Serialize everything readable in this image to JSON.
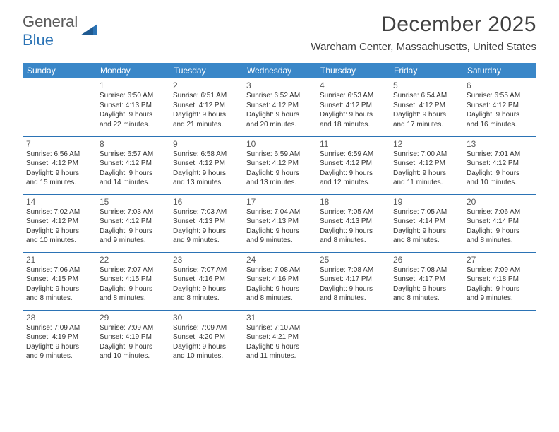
{
  "brand": {
    "text1": "General",
    "text2": "Blue"
  },
  "title": "December 2025",
  "location": "Wareham Center, Massachusetts, United States",
  "colors": {
    "header_bg": "#3a87c8",
    "header_text": "#ffffff",
    "border": "#2b73b5",
    "brand_gray": "#5a5a5a",
    "brand_blue": "#2b73b5",
    "title_color": "#404040",
    "body_text": "#333333",
    "background": "#ffffff"
  },
  "typography": {
    "month_title_fontsize": 30,
    "location_fontsize": 15,
    "dayhead_fontsize": 12,
    "daynum_fontsize": 12,
    "info_fontsize": 10
  },
  "dayHeaders": [
    "Sunday",
    "Monday",
    "Tuesday",
    "Wednesday",
    "Thursday",
    "Friday",
    "Saturday"
  ],
  "weeks": [
    [
      null,
      {
        "n": "1",
        "sr": "6:50 AM",
        "ss": "4:13 PM",
        "dl": "9 hours and 22 minutes."
      },
      {
        "n": "2",
        "sr": "6:51 AM",
        "ss": "4:12 PM",
        "dl": "9 hours and 21 minutes."
      },
      {
        "n": "3",
        "sr": "6:52 AM",
        "ss": "4:12 PM",
        "dl": "9 hours and 20 minutes."
      },
      {
        "n": "4",
        "sr": "6:53 AM",
        "ss": "4:12 PM",
        "dl": "9 hours and 18 minutes."
      },
      {
        "n": "5",
        "sr": "6:54 AM",
        "ss": "4:12 PM",
        "dl": "9 hours and 17 minutes."
      },
      {
        "n": "6",
        "sr": "6:55 AM",
        "ss": "4:12 PM",
        "dl": "9 hours and 16 minutes."
      }
    ],
    [
      {
        "n": "7",
        "sr": "6:56 AM",
        "ss": "4:12 PM",
        "dl": "9 hours and 15 minutes."
      },
      {
        "n": "8",
        "sr": "6:57 AM",
        "ss": "4:12 PM",
        "dl": "9 hours and 14 minutes."
      },
      {
        "n": "9",
        "sr": "6:58 AM",
        "ss": "4:12 PM",
        "dl": "9 hours and 13 minutes."
      },
      {
        "n": "10",
        "sr": "6:59 AM",
        "ss": "4:12 PM",
        "dl": "9 hours and 13 minutes."
      },
      {
        "n": "11",
        "sr": "6:59 AM",
        "ss": "4:12 PM",
        "dl": "9 hours and 12 minutes."
      },
      {
        "n": "12",
        "sr": "7:00 AM",
        "ss": "4:12 PM",
        "dl": "9 hours and 11 minutes."
      },
      {
        "n": "13",
        "sr": "7:01 AM",
        "ss": "4:12 PM",
        "dl": "9 hours and 10 minutes."
      }
    ],
    [
      {
        "n": "14",
        "sr": "7:02 AM",
        "ss": "4:12 PM",
        "dl": "9 hours and 10 minutes."
      },
      {
        "n": "15",
        "sr": "7:03 AM",
        "ss": "4:12 PM",
        "dl": "9 hours and 9 minutes."
      },
      {
        "n": "16",
        "sr": "7:03 AM",
        "ss": "4:13 PM",
        "dl": "9 hours and 9 minutes."
      },
      {
        "n": "17",
        "sr": "7:04 AM",
        "ss": "4:13 PM",
        "dl": "9 hours and 9 minutes."
      },
      {
        "n": "18",
        "sr": "7:05 AM",
        "ss": "4:13 PM",
        "dl": "9 hours and 8 minutes."
      },
      {
        "n": "19",
        "sr": "7:05 AM",
        "ss": "4:14 PM",
        "dl": "9 hours and 8 minutes."
      },
      {
        "n": "20",
        "sr": "7:06 AM",
        "ss": "4:14 PM",
        "dl": "9 hours and 8 minutes."
      }
    ],
    [
      {
        "n": "21",
        "sr": "7:06 AM",
        "ss": "4:15 PM",
        "dl": "9 hours and 8 minutes."
      },
      {
        "n": "22",
        "sr": "7:07 AM",
        "ss": "4:15 PM",
        "dl": "9 hours and 8 minutes."
      },
      {
        "n": "23",
        "sr": "7:07 AM",
        "ss": "4:16 PM",
        "dl": "9 hours and 8 minutes."
      },
      {
        "n": "24",
        "sr": "7:08 AM",
        "ss": "4:16 PM",
        "dl": "9 hours and 8 minutes."
      },
      {
        "n": "25",
        "sr": "7:08 AM",
        "ss": "4:17 PM",
        "dl": "9 hours and 8 minutes."
      },
      {
        "n": "26",
        "sr": "7:08 AM",
        "ss": "4:17 PM",
        "dl": "9 hours and 8 minutes."
      },
      {
        "n": "27",
        "sr": "7:09 AM",
        "ss": "4:18 PM",
        "dl": "9 hours and 9 minutes."
      }
    ],
    [
      {
        "n": "28",
        "sr": "7:09 AM",
        "ss": "4:19 PM",
        "dl": "9 hours and 9 minutes."
      },
      {
        "n": "29",
        "sr": "7:09 AM",
        "ss": "4:19 PM",
        "dl": "9 hours and 10 minutes."
      },
      {
        "n": "30",
        "sr": "7:09 AM",
        "ss": "4:20 PM",
        "dl": "9 hours and 10 minutes."
      },
      {
        "n": "31",
        "sr": "7:10 AM",
        "ss": "4:21 PM",
        "dl": "9 hours and 11 minutes."
      },
      null,
      null,
      null
    ]
  ],
  "labels": {
    "sunrise": "Sunrise:",
    "sunset": "Sunset:",
    "daylight": "Daylight:"
  }
}
